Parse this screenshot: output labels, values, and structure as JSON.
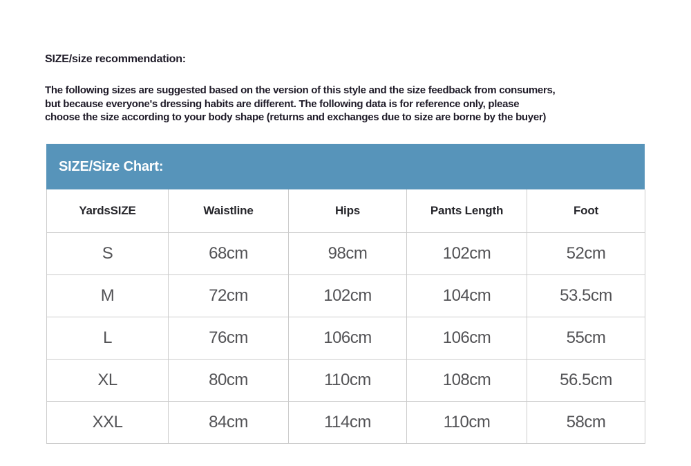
{
  "page": {
    "title": "SIZE/size recommendation:",
    "intro_lines": [
      "The following sizes are suggested based on the version of this style and the size feedback from consumers,",
      "but because everyone's dressing habits are different. The following data is for reference only, please",
      "choose the size according to your body shape (returns and exchanges due to size are borne by the buyer)"
    ]
  },
  "size_chart": {
    "banner_title": "SIZE/Size Chart:",
    "columns": [
      "YardsSIZE",
      "Waistline",
      "Hips",
      "Pants Length",
      "Foot"
    ],
    "rows": [
      [
        "S",
        "68cm",
        "98cm",
        "102cm",
        "52cm"
      ],
      [
        "M",
        "72cm",
        "102cm",
        "104cm",
        "53.5cm"
      ],
      [
        "L",
        "76cm",
        "106cm",
        "106cm",
        "55cm"
      ],
      [
        "XL",
        "80cm",
        "110cm",
        "108cm",
        "56.5cm"
      ],
      [
        "XXL",
        "84cm",
        "114cm",
        "110cm",
        "58cm"
      ]
    ]
  },
  "colors": {
    "accent_blue": "#5794BA",
    "table_border": "#cccccc",
    "text_dark": "#1f1b28",
    "text_gray": "#535356"
  }
}
